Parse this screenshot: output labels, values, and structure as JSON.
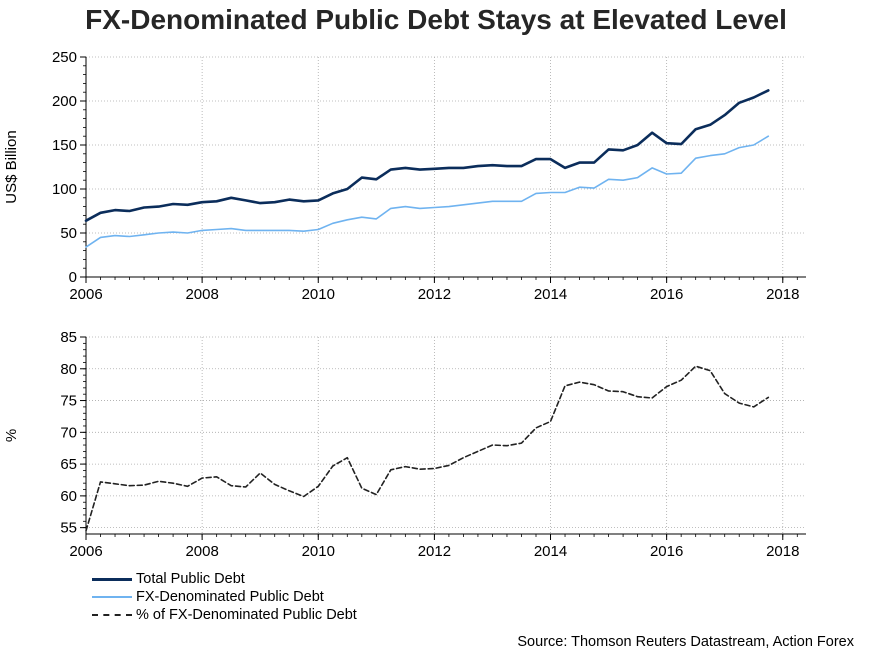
{
  "title": "FX-Denominated Public Debt Stays at Elevated Level",
  "source": "Source: Thomson Reuters Datastream, Action Forex",
  "colors": {
    "total": "#0b2d5b",
    "fx": "#6fb3f0",
    "pct": "#222222",
    "grid": "#aaaaaa"
  },
  "legend": [
    {
      "label": "Total Public Debt",
      "style": "solid-dark"
    },
    {
      "label": "FX-Denominated Public Debt",
      "style": "solid-light"
    },
    {
      "label": "% of FX-Denominated Public Debt",
      "style": "dashed"
    }
  ],
  "chart_data": [
    {
      "type": "line",
      "ylabel": "US$ Billion",
      "xlabel": "",
      "xlim": [
        2006,
        2018.4
      ],
      "ylim": [
        0,
        250
      ],
      "xticks": [
        "2006",
        "2008",
        "2010",
        "2012",
        "2014",
        "2016",
        "2018"
      ],
      "yticks": [
        "0",
        "50",
        "100",
        "150",
        "200",
        "250"
      ],
      "grid": true,
      "series": [
        {
          "name": "Total Public Debt",
          "x": [
            2006.0,
            2006.25,
            2006.5,
            2006.75,
            2007.0,
            2007.25,
            2007.5,
            2007.75,
            2008.0,
            2008.25,
            2008.5,
            2008.75,
            2009.0,
            2009.25,
            2009.5,
            2009.75,
            2010.0,
            2010.25,
            2010.5,
            2010.75,
            2011.0,
            2011.25,
            2011.5,
            2011.75,
            2012.0,
            2012.25,
            2012.5,
            2012.75,
            2013.0,
            2013.25,
            2013.5,
            2013.75,
            2014.0,
            2014.25,
            2014.5,
            2014.75,
            2015.0,
            2015.25,
            2015.5,
            2015.75,
            2016.0,
            2016.25,
            2016.5,
            2016.75,
            2017.0,
            2017.25,
            2017.5,
            2017.75
          ],
          "values": [
            64,
            73,
            76,
            75,
            79,
            80,
            83,
            82,
            85,
            86,
            90,
            87,
            84,
            85,
            88,
            86,
            87,
            95,
            100,
            113,
            111,
            122,
            124,
            122,
            123,
            124,
            124,
            126,
            127,
            126,
            126,
            134,
            134,
            124,
            130,
            130,
            145,
            144,
            150,
            164,
            152,
            151,
            168,
            173,
            184,
            198,
            204,
            212
          ]
        },
        {
          "name": "FX-Denominated Public Debt",
          "x": [
            2006.0,
            2006.25,
            2006.5,
            2006.75,
            2007.0,
            2007.25,
            2007.5,
            2007.75,
            2008.0,
            2008.25,
            2008.5,
            2008.75,
            2009.0,
            2009.25,
            2009.5,
            2009.75,
            2010.0,
            2010.25,
            2010.5,
            2010.75,
            2011.0,
            2011.25,
            2011.5,
            2011.75,
            2012.0,
            2012.25,
            2012.5,
            2012.75,
            2013.0,
            2013.25,
            2013.5,
            2013.75,
            2014.0,
            2014.25,
            2014.5,
            2014.75,
            2015.0,
            2015.25,
            2015.5,
            2015.75,
            2016.0,
            2016.25,
            2016.5,
            2016.75,
            2017.0,
            2017.25,
            2017.5,
            2017.75
          ],
          "values": [
            34,
            45,
            47,
            46,
            48,
            50,
            51,
            50,
            53,
            54,
            55,
            53,
            53,
            53,
            53,
            52,
            54,
            61,
            65,
            68,
            66,
            78,
            80,
            78,
            79,
            80,
            82,
            84,
            86,
            86,
            86,
            95,
            96,
            96,
            102,
            101,
            111,
            110,
            113,
            124,
            117,
            118,
            135,
            138,
            140,
            147,
            150,
            160
          ]
        }
      ]
    },
    {
      "type": "line",
      "ylabel": "%",
      "xlabel": "",
      "xlim": [
        2006,
        2018.4
      ],
      "ylim": [
        54,
        85
      ],
      "xticks": [
        "2006",
        "2008",
        "2010",
        "2012",
        "2014",
        "2016",
        "2018"
      ],
      "yticks": [
        "55",
        "60",
        "65",
        "70",
        "75",
        "80",
        "85"
      ],
      "grid": true,
      "series": [
        {
          "name": "% of FX-Denominated Public Debt",
          "x": [
            2006.0,
            2006.25,
            2006.5,
            2006.75,
            2007.0,
            2007.25,
            2007.5,
            2007.75,
            2008.0,
            2008.25,
            2008.5,
            2008.75,
            2009.0,
            2009.25,
            2009.5,
            2009.75,
            2010.0,
            2010.25,
            2010.5,
            2010.75,
            2011.0,
            2011.25,
            2011.5,
            2011.75,
            2012.0,
            2012.25,
            2012.5,
            2012.75,
            2013.0,
            2013.25,
            2013.5,
            2013.75,
            2014.0,
            2014.25,
            2014.5,
            2014.75,
            2015.0,
            2015.25,
            2015.5,
            2015.75,
            2016.0,
            2016.25,
            2016.5,
            2016.75,
            2017.0,
            2017.25,
            2017.5,
            2017.75
          ],
          "values": [
            54.5,
            62.2,
            61.9,
            61.6,
            61.7,
            62.3,
            62.0,
            61.5,
            62.8,
            63.0,
            61.6,
            61.4,
            63.6,
            61.8,
            60.8,
            59.9,
            61.5,
            64.7,
            66.0,
            61.2,
            60.2,
            64.1,
            64.6,
            64.2,
            64.3,
            64.8,
            66.0,
            67.0,
            68.0,
            67.9,
            68.3,
            70.7,
            71.7,
            77.3,
            77.9,
            77.5,
            76.5,
            76.4,
            75.6,
            75.4,
            77.2,
            78.2,
            80.4,
            79.7,
            76.1,
            74.6,
            74.0,
            75.5
          ]
        }
      ]
    }
  ]
}
